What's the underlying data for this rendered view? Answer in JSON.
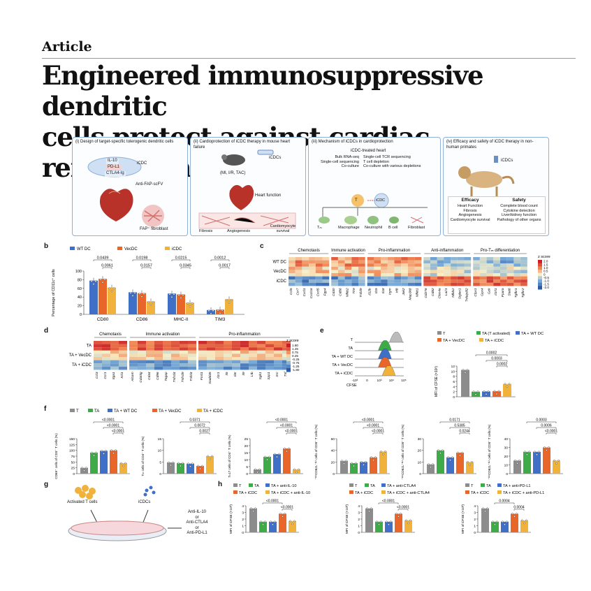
{
  "article": {
    "kicker": "Article",
    "title_line1": "Engineered immunosuppressive dendritic",
    "title_line2": "cells protect against cardiac remodelling"
  },
  "panel_letters": [
    "a",
    "b",
    "c",
    "d",
    "e",
    "f",
    "g",
    "h"
  ],
  "panel_a": {
    "box1": {
      "title": "(i) Design of target-specific tolerogenic dendritic cells",
      "labels": [
        "IL-10",
        "PD-L1",
        "CTLA4-Ig",
        "iCDC",
        "Anti-FAP-scFV",
        "FAP⁺ fibroblast"
      ]
    },
    "box2": {
      "title": "(ii) Cardioprotection of iCDC therapy in mouse heart failure",
      "labels": [
        "iCDCs",
        "(MI, I/R, TAC)",
        "Heart function",
        "Fibrosis",
        "Angiogenesis",
        "Cardiomyocyte survival"
      ]
    },
    "box3": {
      "title": "(iii) Mechanism of iCDCs in cardioprotection",
      "subtitle": "iCDC-treated heart",
      "methods_left": [
        "Bulk RNA-seq",
        "Single-cell sequencing",
        "Co-culture"
      ],
      "methods_right": [
        "Single-cell TCR sequencing",
        "T cell depletion",
        "Co-culture with various depletions"
      ],
      "cells": [
        "T",
        "iCDC",
        "Tₘ",
        "Macrophage",
        "Neutrophil",
        "B cell",
        "Fibroblast"
      ]
    },
    "box4": {
      "title": "(iv) Efficacy and safety of iCDC therapy in non-human primates",
      "label": "iCDCs",
      "efficacy_header": "Efficacy",
      "efficacy": [
        "Heart Function",
        "Fibrosis",
        "Angiogenesis",
        "Cardiomyocyte survival"
      ],
      "safety_header": "Safety",
      "safety": [
        "Complete blood count",
        "Cytokine detection",
        "Liver/kidney function",
        "Pathology of other organs"
      ]
    }
  },
  "colors": {
    "wt": "#3f6fc6",
    "vec": "#e8662a",
    "icdc": "#f0b23a",
    "t": "#8c8c8c",
    "ta": "#3faa48",
    "box": "#8fb1d8"
  },
  "chart_data": [
    {
      "id": "b",
      "type": "bar",
      "categories": [
        "CD80",
        "CD86",
        "MHC-II",
        "TIM3"
      ],
      "ylabel": "Percentage of CD11c⁺ cells",
      "ylim": [
        0,
        100
      ],
      "yticks": [
        0,
        20,
        40,
        60,
        80,
        100
      ],
      "series": [
        {
          "name": "WT DC",
          "values": [
            78,
            51,
            48,
            10
          ]
        },
        {
          "name": "VecDC",
          "values": [
            82,
            49,
            46,
            11
          ]
        },
        {
          "name": "iCDC",
          "values": [
            62,
            30,
            27,
            35
          ]
        }
      ],
      "annotations": [
        {
          "group": 0,
          "p": [
            "0.0439",
            "0.0061"
          ]
        },
        {
          "group": 1,
          "p": [
            "0.0198",
            "0.0157"
          ]
        },
        {
          "group": 2,
          "p": [
            "0.0215",
            "0.0345"
          ]
        },
        {
          "group": 3,
          "p": [
            "0.0012",
            "0.0017"
          ]
        }
      ]
    },
    {
      "id": "c",
      "type": "heatmap",
      "groups": [
        "Chemotaxis",
        "Immune activation",
        "Pro-inflammation",
        "Anti-inflammation",
        "Pro-Tₘ differentiation"
      ],
      "rows": [
        "WT DC",
        "VecDC",
        "iCDC"
      ],
      "columns": [
        "Ccl5",
        "Ccr7",
        "Cxcl1",
        "Cxcl16",
        "Cxcl5",
        "Fgp4",
        "Cd40",
        "Cd86",
        "Nfkb2",
        "Tlr9",
        "Tnfsf9",
        "Il12b",
        "Il15",
        "Il18",
        "Irgm",
        "Irf8",
        "Jak2",
        "Map3k8",
        "Nfkb1",
        "Cd276",
        "Cd82",
        "Clec4a",
        "Lair1",
        "Nfkbiz",
        "Siglec1",
        "Tnfaip8l2",
        "Clpx1",
        "Gpx4",
        "Gzk",
        "Il1rl1",
        "Ppara",
        "Stat6",
        "Tgfbr1",
        "Tgfbr2"
      ],
      "colorbar": {
        "label": "z score",
        "ticks": [
          "2.0",
          "1.5",
          "1.0",
          "0.5",
          "0",
          "-0.5",
          "-1.0",
          "-1.5",
          "-2.0"
        ]
      }
    },
    {
      "id": "d",
      "type": "heatmap",
      "groups": [
        "Chemotaxis",
        "Immune activation",
        "Pro-inflammation"
      ],
      "rows": [
        "TA",
        "TA + VecDC",
        "TA + iCDC"
      ],
      "columns": [
        "Ccl3",
        "Ccr1",
        "Itga1",
        "Xcl1",
        "Alcam",
        "Cd40lg",
        "Cd44",
        "Cd96",
        "Tagap",
        "Tnfrsf4",
        "Tnfrsf9",
        "Tnfsf4",
        "Fosl1",
        "Gadd45",
        "Il1r1",
        "Il5",
        "Il6r",
        "Il9",
        "Ltb",
        "Sgk1",
        "Spp1",
        "Src",
        "Tnf"
      ],
      "colorbar": {
        "label": "z score",
        "ticks": [
          "1.80",
          "1.25",
          "0.75",
          "0.25",
          "-0.25",
          "-0.75",
          "-1.25",
          "-1.80"
        ]
      }
    },
    {
      "id": "e",
      "type": "bar",
      "categories": [
        "T",
        "TA (T activated)",
        "TA + WT DC",
        "TA + VecDC",
        "TA + iCDC"
      ],
      "ylabel": "MFI of CFSE (×10³)",
      "ylim": [
        0,
        12
      ],
      "yticks": [
        0,
        2,
        4,
        6,
        8,
        10,
        12
      ],
      "values": [
        10.5,
        2.0,
        2.1,
        2.2,
        5.0
      ],
      "annotations": [
        "0.0002",
        "0.0003",
        "0.0002"
      ],
      "histogram": {
        "rows": [
          "T",
          "TA",
          "TA + WT DC",
          "TA + VecDC",
          "TA + iCDC"
        ],
        "xlabel": "CFSE",
        "xticks": [
          "-10³",
          "0",
          "10³",
          "10⁴",
          "10⁵"
        ]
      }
    },
    {
      "id": "f",
      "type": "bar",
      "legend": [
        "T",
        "TA",
        "TA + WT DC",
        "TA + VecDC",
        "TA + iCDC"
      ],
      "subplots": [
        {
          "ylabel": "CD69⁺ cells of CD3⁺ T cells (%)",
          "ylim": [
            0,
            150
          ],
          "yticks": [
            0,
            25,
            50,
            75,
            100,
            125,
            150
          ],
          "values": [
            25,
            90,
            98,
            100,
            45
          ],
          "p": [
            "<0.0001",
            "<0.0001",
            "<0.0001"
          ]
        },
        {
          "ylabel": "Tₘ cells of CD4⁺ T cells (%)",
          "ylim": [
            0,
            15
          ],
          "yticks": [
            0,
            5,
            10,
            15
          ],
          "values": [
            4.8,
            4.5,
            4.3,
            3.3,
            7.5
          ],
          "p": [
            "0.0371",
            "0.0072",
            "0.0027"
          ]
        },
        {
          "ylabel": "Tₕ17 cells of CD4⁺ T cells (%)",
          "ylim": [
            0,
            25
          ],
          "yticks": [
            0,
            5,
            10,
            15,
            20,
            25
          ],
          "values": [
            3,
            12,
            14,
            18,
            3
          ],
          "p": [
            "<0.0001",
            "<0.0001",
            "<0.0001"
          ]
        },
        {
          "ylabel": "CD44⁺ᵉᴸᵗCD62L⁻ᵉᴸᵗ cells of CD8⁺ T cells (%)",
          "ylim": [
            0,
            60
          ],
          "yticks": [
            0,
            20,
            40,
            60
          ],
          "values": [
            22,
            18,
            20,
            28,
            38
          ],
          "p": [
            "<0.0001",
            "<0.0001",
            "<0.0001"
          ]
        },
        {
          "ylabel": "CD44⁺ᵉᴸᵗCD62L⁺ᵉᴸᵗ cells of CD8⁺ T cells (%)",
          "ylim": [
            0,
            30
          ],
          "yticks": [
            0,
            10,
            20,
            30
          ],
          "values": [
            8,
            20,
            14,
            18,
            10
          ],
          "p": [
            "0.0171",
            "0.5385",
            "0.0244"
          ]
        },
        {
          "ylabel": "CD44⁺ᵉᴸᵗCD62L⁺ᵉᴸᵗ cells of CD8⁺ T cells (%)",
          "ylim": [
            0,
            40
          ],
          "yticks": [
            0,
            10,
            20,
            30,
            40
          ],
          "values": [
            15,
            25,
            25,
            30,
            15
          ],
          "p": [
            "0.0003",
            "0.0006",
            "<0.0001"
          ]
        }
      ]
    },
    {
      "id": "h",
      "type": "bar",
      "ylabel": "MFI of CFSE (×10³)",
      "ylim": [
        0,
        4
      ],
      "yticks": [
        0,
        1,
        2,
        3,
        4
      ],
      "subplots": [
        {
          "legend": [
            "T",
            "TA",
            "TA + anti-IL-10",
            "TA + iCDC",
            "TA + iCDC + anti-IL-10"
          ],
          "values": [
            3.6,
            1.6,
            1.6,
            2.8,
            1.7
          ],
          "p": [
            "<0.0001",
            "<0.0001"
          ]
        },
        {
          "legend": [
            "T",
            "TA",
            "TA + anti-CTLA4",
            "TA + iCDC",
            "TA + iCDC + anti-CTLA4"
          ],
          "values": [
            3.6,
            1.6,
            1.6,
            2.8,
            1.8
          ],
          "p": [
            "<0.0001",
            "<0.0001"
          ]
        },
        {
          "legend": [
            "T",
            "TA",
            "TA + anti-PD-L1",
            "TA + iCDC",
            "TA + iCDC + anti-PD-L1"
          ],
          "values": [
            3.6,
            1.6,
            1.6,
            2.8,
            1.8
          ],
          "p": [
            "0.0004",
            "0.0004"
          ]
        }
      ]
    }
  ],
  "panel_g": {
    "labels": [
      "Activated T cells",
      "iCDCs",
      "Anti-IL-10",
      "or",
      "Anti-CTLA4",
      "or",
      "Anti-PD-L1"
    ]
  }
}
